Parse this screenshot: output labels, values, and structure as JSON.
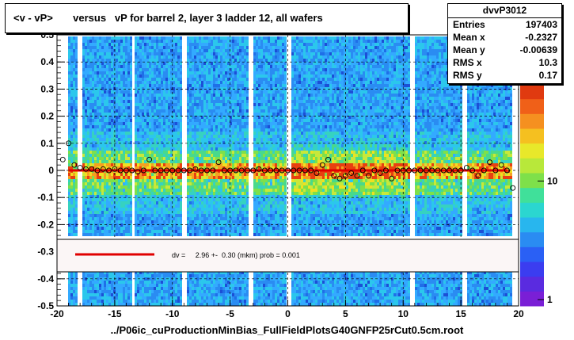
{
  "title": "<v - vP>       versus   vP for barrel 2, layer 3 ladder 12, all wafers",
  "stats": {
    "name": "dvvP3012",
    "rows": [
      {
        "key": "Entries",
        "value": "197403"
      },
      {
        "key": "Mean x",
        "value": "-0.2327"
      },
      {
        "key": "Mean y",
        "value": "-0.00639"
      },
      {
        "key": "RMS x",
        "value": "10.3"
      },
      {
        "key": "RMS y",
        "value": "0.17"
      }
    ]
  },
  "fit_legend": "dv =     2.96 +-  0.30 (mkm) prob = 0.001",
  "x_title": "../P06ic_cuProductionMinBias_FullFieldPlotsG40GNFP25rCut0.5cm.root",
  "colors": {
    "fit_line": "#e00000",
    "profile_marker": "#000000",
    "bg_strip": "#33aaff"
  },
  "chart_data": {
    "type": "heatmap",
    "x_range": [
      -20,
      20
    ],
    "y_range": [
      -0.5,
      0.5
    ],
    "x_ticks": [
      "-20",
      "-15",
      "-10",
      "-5",
      "0",
      "5",
      "10",
      "15",
      "20"
    ],
    "y_ticks": [
      "-0.5",
      "-0.4",
      "-0.3",
      "-0.2",
      "-0.1",
      "0",
      "0.1",
      "0.2",
      "0.3",
      "0.4",
      "0.5"
    ],
    "z_ticks": [
      "1",
      "10"
    ],
    "z_log": true,
    "grid": true,
    "legend_placement": "bottom-center",
    "fit_line": {
      "x": [
        -19,
        19
      ],
      "y": [
        0,
        0
      ]
    },
    "profile_points": {
      "x": [
        -19.5,
        -19,
        -18.5,
        -18,
        -17.5,
        -17,
        -16.5,
        -16,
        -15.5,
        -15,
        -14.5,
        -14,
        -13.5,
        -13,
        -12.5,
        -12,
        -11.5,
        -11,
        -10.5,
        -10,
        -9.5,
        -9,
        -8.5,
        -8,
        -7.5,
        -7,
        -6.5,
        -6,
        -5.5,
        -5,
        -4.5,
        -4,
        -3.5,
        -3,
        -2.5,
        -2,
        -1.5,
        -1,
        -0.5,
        0,
        0.5,
        1,
        1.5,
        2,
        2.5,
        3,
        3.5,
        4,
        4.5,
        5,
        5.5,
        6,
        6.5,
        7,
        7.5,
        8,
        8.5,
        9,
        9.5,
        10,
        10.5,
        11,
        11.5,
        12,
        12.5,
        13,
        13.5,
        14,
        14.5,
        15,
        15.5,
        16,
        16.5,
        17,
        17.5,
        18,
        18.5,
        19,
        19.5
      ],
      "y": [
        0.04,
        0.1,
        0.02,
        0.01,
        0.005,
        0.005,
        0.0,
        0.005,
        0.0,
        0.005,
        0.0,
        0.0,
        0.0,
        -0.005,
        0.0,
        0.04,
        0.0,
        0.0,
        0.0,
        0.0,
        0.0,
        0.0,
        0.0,
        0.005,
        0.0,
        0.0,
        0.0,
        0.03,
        0.0,
        0.0,
        0.0,
        0.0,
        0.0,
        0.0,
        0.005,
        0.0,
        0.0,
        0.0,
        0.0,
        0.0,
        0.0,
        0.0,
        0.0,
        0.0,
        -0.01,
        0.02,
        0.04,
        -0.02,
        -0.03,
        -0.02,
        -0.01,
        -0.02,
        0.0,
        -0.02,
        0.0,
        -0.01,
        0.0,
        -0.03,
        0.0,
        0.0,
        0.0,
        0.0,
        0.0,
        0.0,
        0.0,
        0.0,
        0.0,
        0.0,
        0.0,
        0.0,
        0.01,
        0.0,
        -0.02,
        0.0,
        0.03,
        0.0,
        0.02,
        0.0,
        -0.065
      ]
    }
  }
}
